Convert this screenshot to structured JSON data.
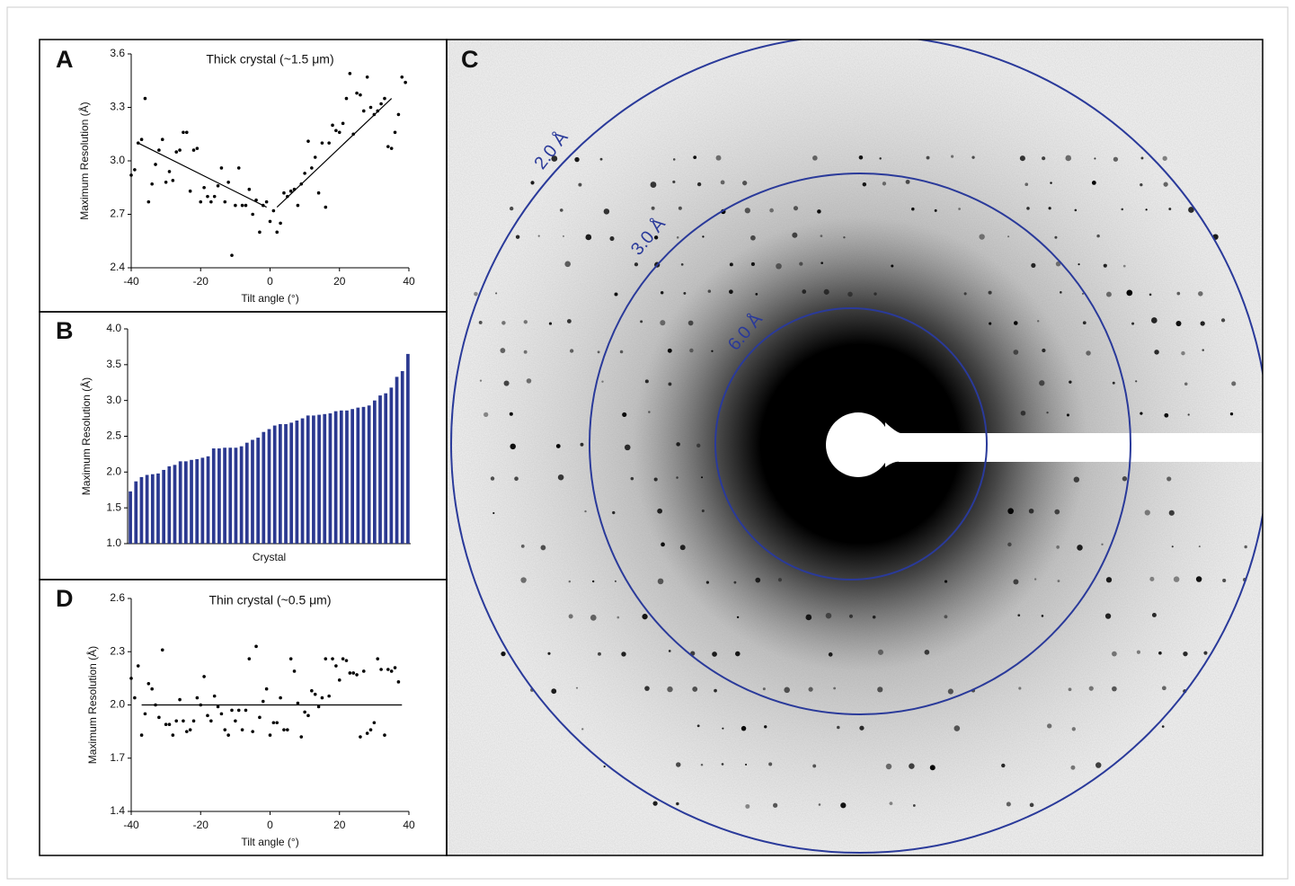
{
  "chart_data": [
    {
      "type": "scatter",
      "panel": "A",
      "title": "Thick crystal (~1.5 μm)",
      "x_label": "Tilt angle (°)",
      "y_label": "Maximum Resolution (Å)",
      "xlim": [
        -40,
        40
      ],
      "xticks": [
        -40,
        -20,
        0,
        20,
        40
      ],
      "ylim": [
        2.4,
        3.6
      ],
      "yticks": [
        2.4,
        2.7,
        {
          "value": 3.0,
          "label": "3.0"
        },
        3.3,
        3.6
      ],
      "color": "#000000",
      "x": [
        -40,
        -39,
        -38,
        -37,
        -36,
        -35,
        -34,
        -33,
        -32,
        -31,
        -30,
        -29,
        -28,
        -27,
        -26,
        -25,
        -24,
        -23,
        -22,
        -21,
        -20,
        -19,
        -18,
        -17,
        -16,
        -15,
        -14,
        -13,
        -12,
        -11,
        -10,
        -9,
        -8,
        -7,
        -6,
        -5,
        -4,
        -3,
        -2,
        -1,
        0,
        1,
        2,
        3,
        4,
        5,
        6,
        7,
        8,
        9,
        10,
        11,
        12,
        13,
        14,
        15,
        16,
        17,
        18,
        19,
        20,
        21,
        22,
        23,
        24,
        25,
        26,
        27,
        28,
        29,
        30,
        31,
        32,
        33,
        34,
        35,
        36,
        37,
        38,
        39
      ],
      "values": [
        2.92,
        2.95,
        3.1,
        3.12,
        3.35,
        2.77,
        2.87,
        2.98,
        3.06,
        3.12,
        2.88,
        2.94,
        2.89,
        3.05,
        3.06,
        3.16,
        3.16,
        2.83,
        3.06,
        3.07,
        2.77,
        2.85,
        2.8,
        2.77,
        2.8,
        2.86,
        2.96,
        2.77,
        2.88,
        2.47,
        2.75,
        2.96,
        2.75,
        2.75,
        2.84,
        2.7,
        2.78,
        2.6,
        2.75,
        2.77,
        2.66,
        2.72,
        2.6,
        2.65,
        2.82,
        2.8,
        2.83,
        2.84,
        2.75,
        2.87,
        2.93,
        3.11,
        2.96,
        3.02,
        2.82,
        3.1,
        2.74,
        3.1,
        3.2,
        3.17,
        3.16,
        3.21,
        3.35,
        3.49,
        3.15,
        3.38,
        3.37,
        3.28,
        3.47,
        3.3,
        3.26,
        3.28,
        3.32,
        3.35,
        3.08,
        3.07,
        3.16,
        3.26,
        3.47,
        3.44
      ],
      "fit_lines": [
        {
          "x": [
            -38,
            -1
          ],
          "y": [
            3.1,
            2.74
          ]
        },
        {
          "x": [
            2,
            35
          ],
          "y": [
            2.74,
            3.35
          ]
        }
      ]
    },
    {
      "type": "bar",
      "panel": "B",
      "x_label": "Crystal",
      "y_label": "Maximum Resolution (Å)",
      "ylim": [
        1.0,
        4.0
      ],
      "yticks": [
        {
          "value": 1.0,
          "label": "1.0"
        },
        1.5,
        {
          "value": 2.0,
          "label": "2.0"
        },
        2.5,
        {
          "value": 3.0,
          "label": "3.0"
        },
        3.5,
        {
          "value": 4.0,
          "label": "4.0"
        }
      ],
      "color": "#2b3990",
      "values": [
        1.73,
        1.87,
        1.93,
        1.96,
        1.97,
        1.98,
        2.03,
        2.08,
        2.1,
        2.15,
        2.15,
        2.17,
        2.18,
        2.2,
        2.22,
        2.33,
        2.33,
        2.34,
        2.34,
        2.34,
        2.36,
        2.41,
        2.45,
        2.48,
        2.56,
        2.6,
        2.65,
        2.67,
        2.67,
        2.69,
        2.72,
        2.75,
        2.79,
        2.79,
        2.8,
        2.81,
        2.82,
        2.85,
        2.86,
        2.86,
        2.88,
        2.9,
        2.91,
        2.93,
        3.0,
        3.07,
        3.1,
        3.18,
        3.33,
        3.41,
        3.65
      ]
    },
    {
      "type": "scatter",
      "panel": "D",
      "title": "Thin crystal (~0.5 μm)",
      "x_label": "Tilt angle (°)",
      "y_label": "Maximum Resolution (Å)",
      "xlim": [
        -40,
        40
      ],
      "xticks": [
        -40,
        -20,
        0,
        20,
        40
      ],
      "ylim": [
        1.4,
        2.6
      ],
      "yticks": [
        1.4,
        1.7,
        {
          "value": 2.0,
          "label": "2.0"
        },
        2.3,
        2.6
      ],
      "color": "#000000",
      "x": [
        -40,
        -39,
        -38,
        -37,
        -36,
        -35,
        -34,
        -33,
        -32,
        -31,
        -30,
        -29,
        -28,
        -27,
        -26,
        -25,
        -24,
        -23,
        -22,
        -21,
        -20,
        -19,
        -18,
        -17,
        -16,
        -15,
        -14,
        -13,
        -12,
        -11,
        -10,
        -9,
        -8,
        -7,
        -6,
        -5,
        -4,
        -3,
        -2,
        -1,
        0,
        1,
        2,
        3,
        4,
        5,
        6,
        7,
        8,
        9,
        10,
        11,
        12,
        13,
        14,
        15,
        16,
        17,
        18,
        19,
        20,
        21,
        22,
        23,
        24,
        25,
        26,
        27,
        28,
        29,
        30,
        31,
        32,
        33,
        34,
        35,
        36,
        37
      ],
      "values": [
        2.15,
        2.04,
        2.22,
        1.83,
        1.95,
        2.12,
        2.09,
        2.0,
        1.93,
        2.31,
        1.89,
        1.89,
        1.83,
        1.91,
        2.03,
        1.91,
        1.85,
        1.86,
        1.91,
        2.04,
        2.0,
        2.16,
        1.94,
        1.91,
        2.05,
        1.99,
        1.95,
        1.86,
        1.83,
        1.97,
        1.91,
        1.97,
        1.86,
        1.97,
        2.26,
        1.85,
        2.33,
        1.93,
        2.02,
        2.09,
        1.83,
        1.9,
        1.9,
        2.04,
        1.86,
        1.86,
        2.26,
        2.19,
        2.01,
        1.82,
        1.96,
        1.94,
        2.08,
        2.06,
        1.99,
        2.04,
        2.26,
        2.05,
        2.26,
        2.22,
        2.14,
        2.26,
        2.25,
        2.18,
        2.18,
        2.17,
        1.82,
        2.19,
        1.84,
        1.86,
        1.9,
        2.26,
        2.2,
        1.83,
        2.2,
        2.19,
        2.21,
        2.13
      ],
      "fit_lines": [
        {
          "x": [
            -37,
            38
          ],
          "y": [
            2.0,
            2.0
          ]
        }
      ]
    }
  ],
  "image_panel": {
    "panel": "C",
    "ring_labels": [
      "2.0 Å",
      "3.0 Å",
      "6.0 Å"
    ]
  }
}
